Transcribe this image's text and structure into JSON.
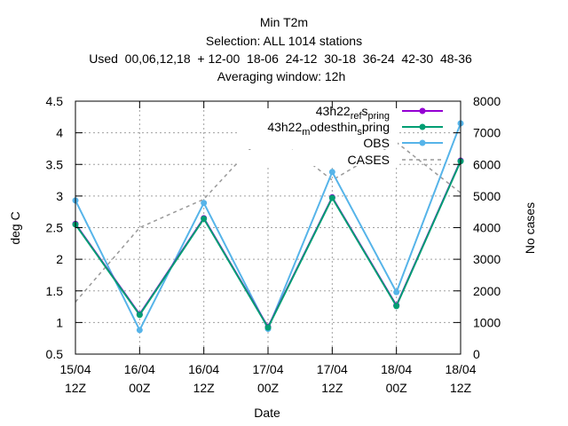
{
  "chart_data": {
    "type": "line",
    "title_lines": [
      "Min T2m",
      "Selection: ALL   1014 stations",
      "Used  00,06,12,18  + 12-00  18-06  24-12  30-18  36-24  42-30  48-36",
      "Averaging window: 12h"
    ],
    "xlabel": "Date",
    "ylabel": "deg C",
    "y2label": "No cases",
    "x_ticks": [
      {
        "top": "15/04",
        "bottom": "12Z"
      },
      {
        "top": "16/04",
        "bottom": "00Z"
      },
      {
        "top": "16/04",
        "bottom": "12Z"
      },
      {
        "top": "17/04",
        "bottom": "00Z"
      },
      {
        "top": "17/04",
        "bottom": "12Z"
      },
      {
        "top": "18/04",
        "bottom": "00Z"
      },
      {
        "top": "18/04",
        "bottom": "12Z"
      }
    ],
    "ylim": [
      0.5,
      4.5
    ],
    "y_ticks": [
      "0.5",
      "1",
      "1.5",
      "2",
      "2.5",
      "3",
      "3.5",
      "4",
      "4.5"
    ],
    "y2lim": [
      0,
      8000
    ],
    "y2_ticks": [
      "0",
      "1000",
      "2000",
      "3000",
      "4000",
      "5000",
      "6000",
      "7000",
      "8000"
    ],
    "grid": true,
    "legend_position": "top-right",
    "series": [
      {
        "legend_parts": [
          {
            "text": "43h22",
            "sub": false
          },
          {
            "text": "ref",
            "sub": true
          },
          {
            "text": "s",
            "sub": false
          },
          {
            "text": "pring",
            "sub": true
          }
        ],
        "color": "#9400d3",
        "axis": "y",
        "values": [
          2.56,
          1.13,
          2.65,
          0.93,
          2.98,
          1.27,
          3.56
        ]
      },
      {
        "legend_parts": [
          {
            "text": "43h22",
            "sub": false
          },
          {
            "text": "m",
            "sub": true
          },
          {
            "text": "odesthin",
            "sub": false
          },
          {
            "text": "s",
            "sub": true
          },
          {
            "text": "pring",
            "sub": false
          }
        ],
        "color": "#009e73",
        "axis": "y",
        "values": [
          2.55,
          1.12,
          2.64,
          0.92,
          2.97,
          1.26,
          3.55
        ]
      },
      {
        "legend_parts": [
          {
            "text": "OBS",
            "sub": false
          }
        ],
        "color": "#56b4e9",
        "axis": "y",
        "values": [
          2.93,
          0.88,
          2.89,
          0.9,
          3.38,
          1.48,
          4.15
        ]
      },
      {
        "legend_parts": [
          {
            "text": "CASES",
            "sub": false
          }
        ],
        "color": "#999999",
        "axis": "y2",
        "dashed": true,
        "values": [
          1650,
          4000,
          4900,
          7100,
          5500,
          6700,
          5100
        ]
      }
    ]
  }
}
